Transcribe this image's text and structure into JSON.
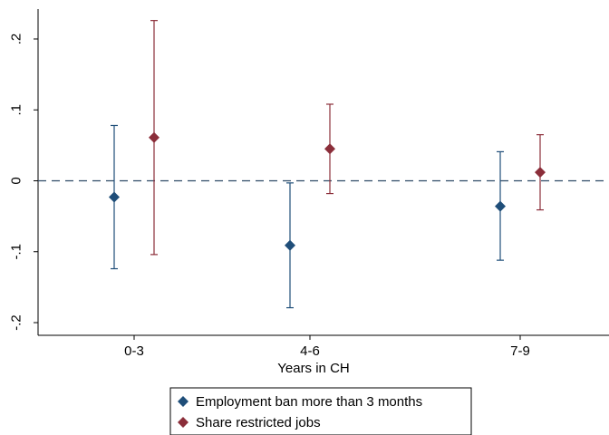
{
  "chart_data": {
    "type": "scatter",
    "title": "",
    "xlabel": "Years in CH",
    "ylabel": "",
    "categories": [
      "0-3",
      "4-6",
      "7-9"
    ],
    "ylim": [
      -0.2,
      0.2
    ],
    "yticks": [
      -0.2,
      -0.1,
      0,
      0.1,
      0.2
    ],
    "ytick_labels": [
      "-.2",
      "-.1",
      "0",
      ".1",
      ".2"
    ],
    "reference_line": {
      "y": 0,
      "style": "dashed"
    },
    "grid": false,
    "legend_position": "bottom",
    "series": [
      {
        "name": "Employment ban more than 3 months",
        "color": "#1f4e79",
        "marker": "diamond",
        "points": [
          {
            "category": "0-3",
            "estimate": -0.023,
            "ci_low": -0.124,
            "ci_high": 0.078
          },
          {
            "category": "4-6",
            "estimate": -0.091,
            "ci_low": -0.179,
            "ci_high": -0.003
          },
          {
            "category": "7-9",
            "estimate": -0.036,
            "ci_low": -0.112,
            "ci_high": 0.041
          }
        ]
      },
      {
        "name": "Share restricted jobs",
        "color": "#8b2e3a",
        "marker": "diamond",
        "points": [
          {
            "category": "0-3",
            "estimate": 0.061,
            "ci_low": -0.104,
            "ci_high": 0.226
          },
          {
            "category": "4-6",
            "estimate": 0.045,
            "ci_low": -0.018,
            "ci_high": 0.108
          },
          {
            "category": "7-9",
            "estimate": 0.012,
            "ci_low": -0.041,
            "ci_high": 0.065
          }
        ]
      }
    ]
  }
}
